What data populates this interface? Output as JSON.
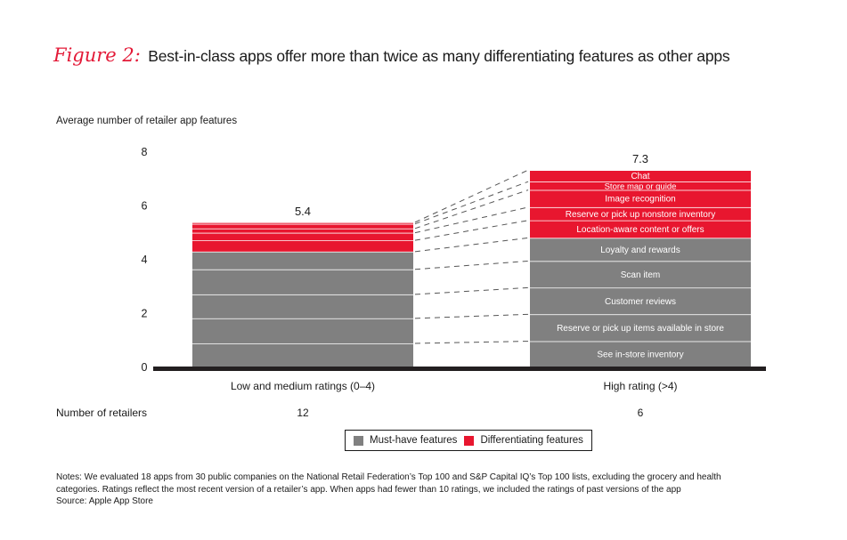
{
  "figure": {
    "label": "Figure 2:",
    "title": "Best-in-class apps offer more than twice as many differentiating features as other apps"
  },
  "colors": {
    "must_have": "#808080",
    "differentiating": "#e8162f",
    "axis": "#231f20",
    "accent": "#e31937"
  },
  "chart_data": {
    "type": "bar",
    "stacked": true,
    "title": "Best-in-class apps offer more than twice as many differentiating features as other apps",
    "ylabel": "Average number of retailer app features",
    "xlabel": "",
    "ylim": [
      0,
      8
    ],
    "yticks": [
      0,
      2,
      4,
      6,
      8
    ],
    "grid": false,
    "legend_position": "bottom-center",
    "categories": [
      "Low and medium ratings (0–4)",
      "High rating (>4)"
    ],
    "totals": [
      5.4,
      7.3
    ],
    "total_labels": [
      "5.4",
      "7.3"
    ],
    "series": [
      {
        "name": "See in-store inventory",
        "group": "Must-have features",
        "values": [
          0.86,
          0.94
        ]
      },
      {
        "name": "Reserve or pick up items available in store",
        "group": "Must-have features",
        "values": [
          0.93,
          1.0
        ]
      },
      {
        "name": "Customer reviews",
        "group": "Must-have features",
        "values": [
          0.89,
          0.99
        ]
      },
      {
        "name": "Scan item",
        "group": "Must-have features",
        "values": [
          0.93,
          0.99
        ]
      },
      {
        "name": "Loyalty and rewards",
        "group": "Must-have features",
        "values": [
          0.66,
          0.86
        ]
      },
      {
        "name": "Location-aware content or offers",
        "group": "Differentiating features",
        "values": [
          0.42,
          0.65
        ]
      },
      {
        "name": "Reserve or pick up nonstore inventory",
        "group": "Differentiating features",
        "values": [
          0.28,
          0.49
        ]
      },
      {
        "name": "Image recognition",
        "group": "Differentiating features",
        "values": [
          0.16,
          0.64
        ]
      },
      {
        "name": "Store map or guide",
        "group": "Differentiating features",
        "values": [
          0.17,
          0.31
        ]
      },
      {
        "name": "Chat",
        "group": "Differentiating features",
        "values": [
          0.06,
          0.43
        ]
      }
    ],
    "legend": [
      "Must-have features",
      "Differentiating features"
    ]
  },
  "retailers": {
    "label": "Number of retailers",
    "values": [
      "12",
      "6"
    ]
  },
  "notes": {
    "line1": "Notes: We evaluated 18 apps from 30 public companies on the National Retail Federation’s Top 100 and S&P Capital IQ’s Top 100 lists, excluding the grocery and health",
    "line2": "categories. Ratings reflect the most recent version of a retailer’s app. When apps had fewer than 10 ratings, we included the ratings of past versions of the app",
    "source": "Source: Apple App Store"
  }
}
